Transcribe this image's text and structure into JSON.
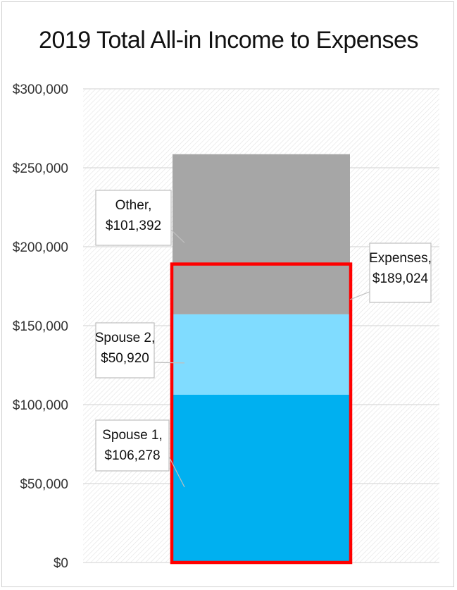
{
  "chart_data": {
    "type": "bar",
    "stacked": true,
    "title": "2019 Total All-in Income to Expenses",
    "xlabel": "",
    "ylabel": "",
    "ylim": [
      0,
      300000
    ],
    "yticks": [
      0,
      50000,
      100000,
      150000,
      200000,
      250000,
      300000
    ],
    "ytick_labels": [
      "$0",
      "$50,000",
      "$100,000",
      "$150,000",
      "$200,000",
      "$250,000",
      "$300,000"
    ],
    "grid": true,
    "series": [
      {
        "name": "Spouse 1",
        "values": [
          106278
        ],
        "color": "#00b0f0",
        "label_line1": "Spouse 1,",
        "label_line2": "$106,278"
      },
      {
        "name": "Spouse 2",
        "values": [
          50920
        ],
        "color": "#80dcff",
        "label_line1": "Spouse 2,",
        "label_line2": "$50,920"
      },
      {
        "name": "Other",
        "values": [
          101392
        ],
        "color": "#a6a6a6",
        "label_line1": "Other,",
        "label_line2": "$101,392"
      }
    ],
    "overlay": {
      "name": "Expenses",
      "value": 189024,
      "outline_color": "#ff0000",
      "label_line1": "Expenses,",
      "label_line2": "$189,024"
    }
  }
}
